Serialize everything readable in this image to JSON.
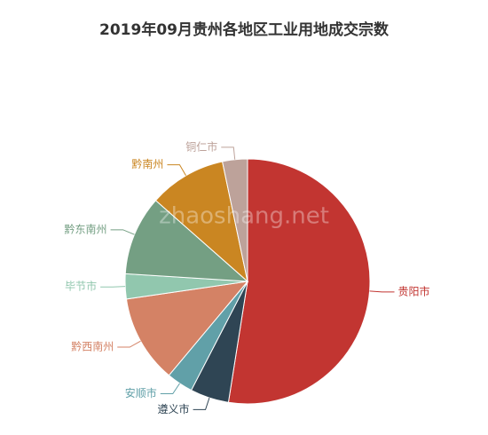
{
  "chart_data": {
    "type": "pie",
    "title": "2019年09月贵州各地区工业用地成交宗数",
    "watermark": "zhaoshang.net",
    "categories": [
      "贵阳市",
      "遵义市",
      "安顺市",
      "黔西南州",
      "毕节市",
      "黔东南州",
      "黔南州",
      "铜仁市"
    ],
    "values": [
      52.5,
      5.1,
      3.5,
      11.6,
      3.3,
      10.5,
      10.2,
      3.3
    ],
    "colors": [
      "#c23531",
      "#2f4554",
      "#61a0a8",
      "#d48265",
      "#91c7ae",
      "#749f83",
      "#ca8622",
      "#bda29a"
    ]
  }
}
